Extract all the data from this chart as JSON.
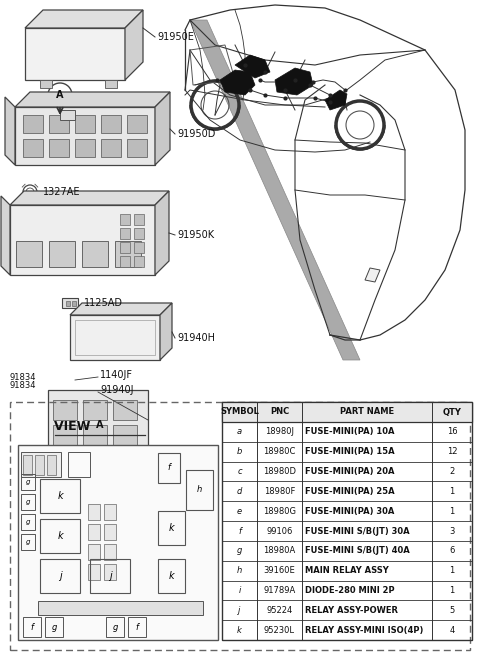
{
  "background_color": "#ffffff",
  "table_headers": [
    "SYMBOL",
    "PNC",
    "PART NAME",
    "QTY"
  ],
  "table_rows": [
    [
      "a",
      "18980J",
      "FUSE-MINI(PA) 10A",
      "16"
    ],
    [
      "b",
      "18980C",
      "FUSE-MINI(PA) 15A",
      "12"
    ],
    [
      "c",
      "18980D",
      "FUSE-MINI(PA) 20A",
      "2"
    ],
    [
      "d",
      "18980F",
      "FUSE-MINI(PA) 25A",
      "1"
    ],
    [
      "e",
      "18980G",
      "FUSE-MINI(PA) 30A",
      "1"
    ],
    [
      "f",
      "99106",
      "FUSE-MINI S/B(JT) 30A",
      "3"
    ],
    [
      "g",
      "18980A",
      "FUSE-MINI S/B(JT) 40A",
      "6"
    ],
    [
      "h",
      "39160E",
      "MAIN RELAY ASSY",
      "1"
    ],
    [
      "i",
      "91789A",
      "DIODE-280 MINI 2P",
      "1"
    ],
    [
      "j",
      "95224",
      "RELAY ASSY-POWER",
      "5"
    ],
    [
      "k",
      "95230L",
      "RELAY ASSY-MINI ISO(4P)",
      "4"
    ]
  ]
}
